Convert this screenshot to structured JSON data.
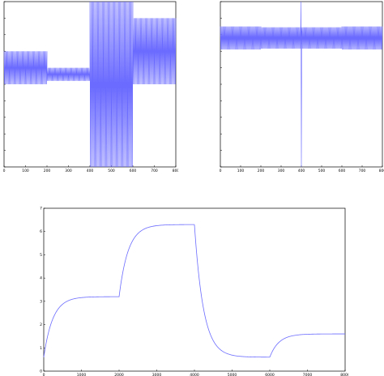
{
  "colors": {
    "series": "#6b6bff",
    "axis": "#000000",
    "background": "#ffffff"
  },
  "chart_data": [
    {
      "type": "line",
      "title": "",
      "xlabel": "",
      "ylabel": "",
      "xlim": [
        0,
        800
      ],
      "ylim": [
        -10,
        10
      ],
      "x_ticks": [
        "0",
        "100",
        "200",
        "300",
        "400",
        "500",
        "600",
        "700",
        "800"
      ],
      "y_ticks": [],
      "signal": "oscillation",
      "segments": [
        {
          "x": [
            0,
            200
          ],
          "amplitude": 2.0,
          "center": 2.0
        },
        {
          "x": [
            200,
            400
          ],
          "amplitude": 0.8,
          "center": 1.2
        },
        {
          "x": [
            400,
            600
          ],
          "amplitude": 10.0,
          "center": 0.0
        },
        {
          "x": [
            600,
            800
          ],
          "amplitude": 4.0,
          "center": 4.0
        }
      ]
    },
    {
      "type": "line",
      "title": "",
      "xlabel": "",
      "ylabel": "",
      "xlim": [
        0,
        800
      ],
      "ylim": [
        -10,
        10
      ],
      "x_ticks": [
        "0",
        "100",
        "200",
        "300",
        "400",
        "500",
        "600",
        "700",
        "800"
      ],
      "y_ticks": [],
      "signal": "oscillation",
      "segments": [
        {
          "x": [
            0,
            200
          ],
          "amplitude": 1.4,
          "center": 5.6
        },
        {
          "x": [
            200,
            400
          ],
          "amplitude": 1.3,
          "center": 5.6
        },
        {
          "x": [
            400,
            600
          ],
          "amplitude": 1.3,
          "center": 5.6
        },
        {
          "x": [
            600,
            800
          ],
          "amplitude": 1.4,
          "center": 5.6
        }
      ],
      "spike": {
        "x": 400,
        "ymax": 10,
        "ymin": -10
      }
    },
    {
      "type": "line",
      "title": "",
      "xlabel": "",
      "ylabel": "",
      "xlim": [
        0,
        8000
      ],
      "ylim": [
        0,
        7
      ],
      "x_ticks": [
        "0",
        "1000",
        "2000",
        "3000",
        "4000",
        "5000",
        "6000",
        "7000",
        "8000"
      ],
      "y_ticks": [
        "0",
        "1",
        "2",
        "3",
        "4",
        "5",
        "6",
        "7"
      ],
      "signal": "step_response",
      "segments": [
        {
          "x": [
            0,
            2000
          ],
          "start": 0.6,
          "level": 3.2
        },
        {
          "x": [
            2000,
            4000
          ],
          "start": 3.2,
          "level": 6.3
        },
        {
          "x": [
            4000,
            6000
          ],
          "start": 6.3,
          "level": 0.6
        },
        {
          "x": [
            6000,
            8000
          ],
          "start": 0.6,
          "level": 1.6
        }
      ]
    }
  ]
}
